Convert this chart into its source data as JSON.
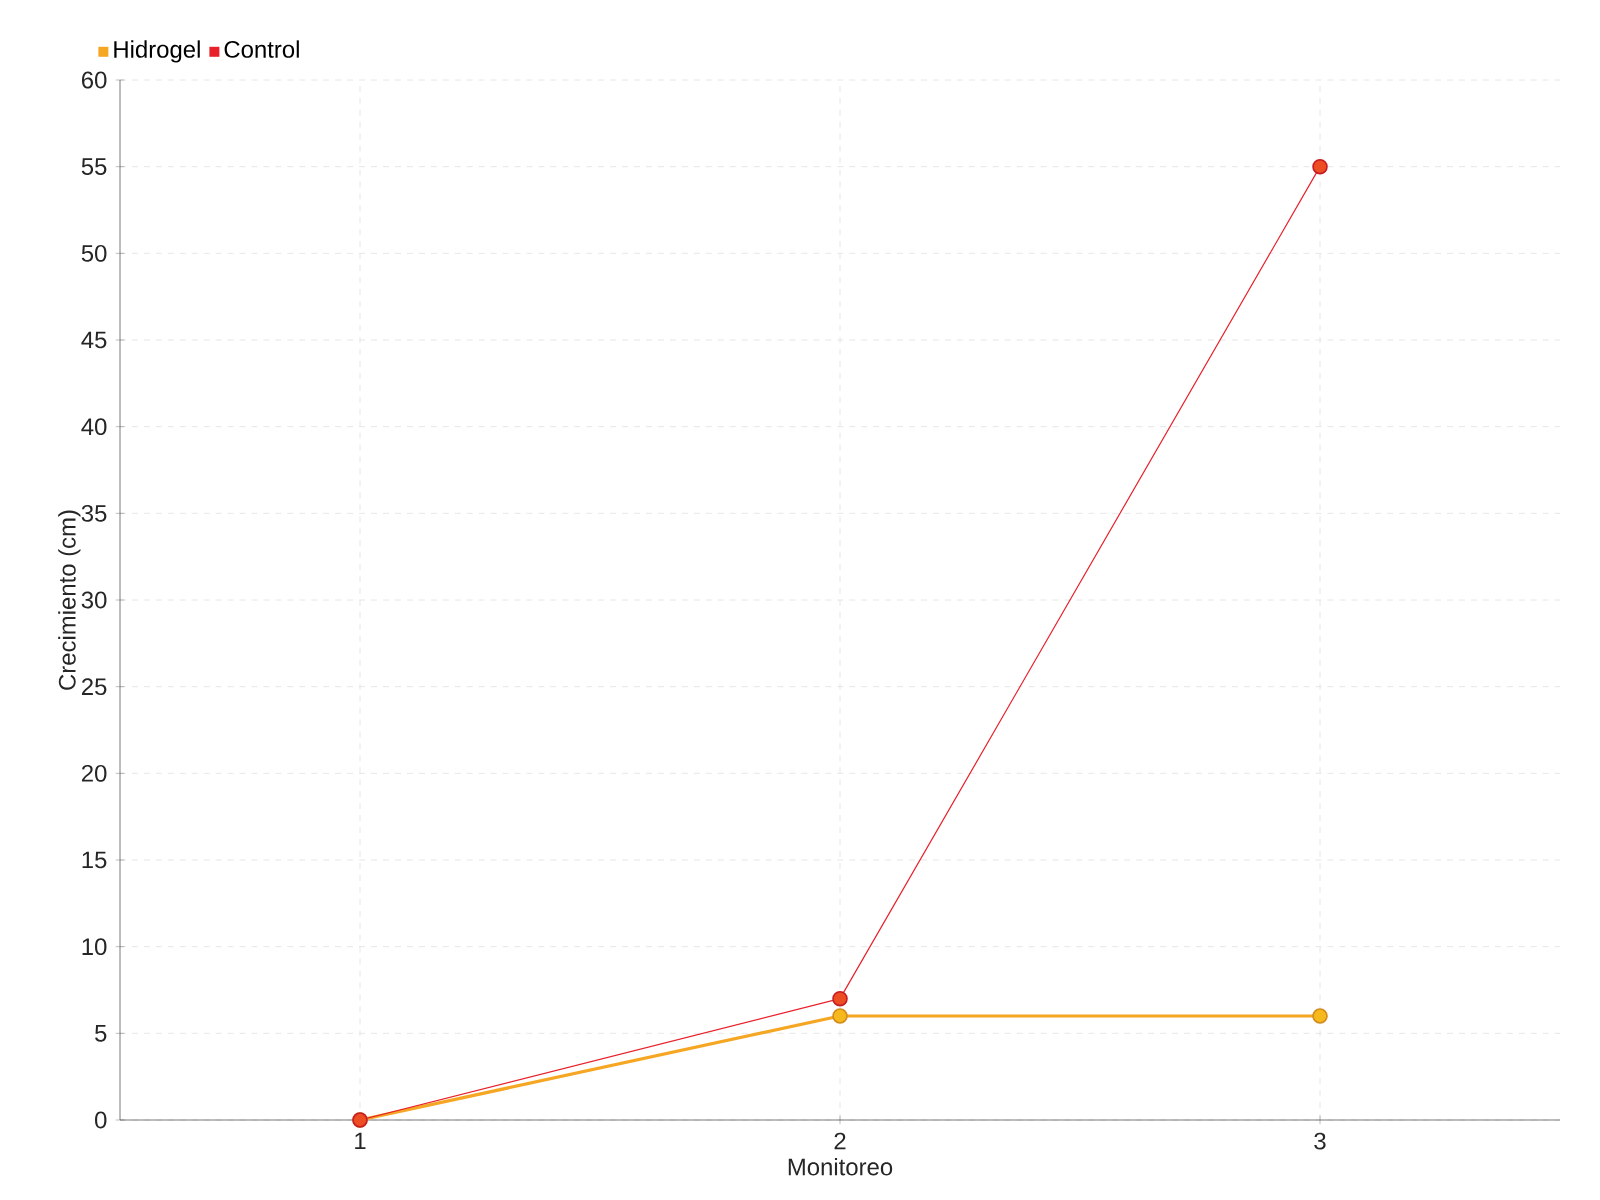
{
  "chart_data": {
    "type": "line",
    "xlabel": "Monitoreo",
    "ylabel": "Crecimiento (cm)",
    "x": [
      1,
      2,
      3
    ],
    "xlim": [
      0.5,
      3.5
    ],
    "xticks": [
      1,
      2,
      3
    ],
    "ylim": [
      0,
      60
    ],
    "yticks": [
      0,
      5,
      10,
      15,
      20,
      25,
      30,
      35,
      40,
      45,
      50,
      55,
      60
    ],
    "grid": true,
    "legend": "top left",
    "marker": "circle",
    "line_style": "solid",
    "series": [
      {
        "name": "Hidrogel",
        "color": "#f5a623",
        "values": [
          0,
          6,
          6
        ]
      },
      {
        "name": "Control",
        "color": "#e8202a",
        "values": [
          0,
          7,
          55
        ]
      }
    ]
  }
}
